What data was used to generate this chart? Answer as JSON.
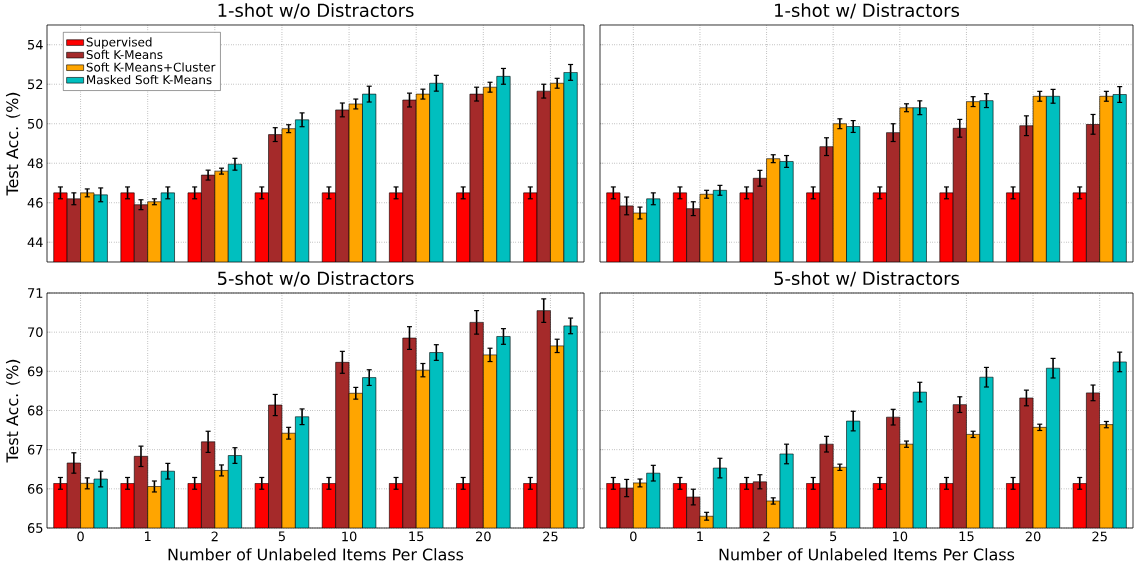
{
  "chart_data": [
    {
      "type": "bar",
      "title": "1-shot w/o Distractors",
      "ylabel": "Test Acc. (%)",
      "categories": [
        "0",
        "1",
        "2",
        "5",
        "10",
        "15",
        "20",
        "25"
      ],
      "ylim": [
        43,
        55
      ],
      "yticks": [
        44,
        46,
        48,
        50,
        52,
        54
      ],
      "grid": true,
      "legend": "top left",
      "tick_labels": "y",
      "series": [
        {
          "name": "Supervised",
          "color": "#ff0000",
          "values": [
            46.5,
            46.5,
            46.5,
            46.5,
            46.5,
            46.5,
            46.5,
            46.5
          ],
          "errors": [
            0.3,
            0.3,
            0.3,
            0.3,
            0.3,
            0.3,
            0.3,
            0.3
          ]
        },
        {
          "name": "Soft K-Means",
          "color": "#a52a2a",
          "values": [
            46.2,
            45.9,
            47.4,
            49.45,
            50.7,
            51.2,
            51.5,
            51.65
          ],
          "errors": [
            0.3,
            0.25,
            0.25,
            0.35,
            0.35,
            0.35,
            0.35,
            0.35
          ]
        },
        {
          "name": "Soft K-Means+Cluster",
          "color": "#ffa500",
          "values": [
            46.5,
            46.05,
            47.6,
            49.75,
            51.0,
            51.5,
            51.85,
            52.05
          ],
          "errors": [
            0.2,
            0.15,
            0.15,
            0.2,
            0.25,
            0.25,
            0.25,
            0.25
          ]
        },
        {
          "name": "Masked Soft K-Means",
          "color": "#00bfbf",
          "values": [
            46.4,
            46.5,
            47.95,
            50.2,
            51.5,
            52.05,
            52.4,
            52.6
          ],
          "errors": [
            0.35,
            0.3,
            0.3,
            0.35,
            0.4,
            0.4,
            0.4,
            0.4
          ]
        }
      ]
    },
    {
      "type": "bar",
      "title": "1-shot w/ Distractors",
      "categories": [
        "0",
        "1",
        "2",
        "5",
        "10",
        "15",
        "20",
        "25"
      ],
      "ylim": [
        43,
        55
      ],
      "yticks": [
        44,
        46,
        48,
        50,
        52,
        54
      ],
      "grid": true,
      "tick_labels": false,
      "series": [
        {
          "color": "#ff0000",
          "values": [
            46.5,
            46.5,
            46.5,
            46.5,
            46.5,
            46.5,
            46.5,
            46.5
          ],
          "errors": [
            0.3,
            0.3,
            0.3,
            0.3,
            0.3,
            0.3,
            0.3,
            0.3
          ]
        },
        {
          "color": "#a52a2a",
          "values": [
            45.84,
            45.7,
            47.24,
            48.84,
            49.55,
            49.77,
            49.9,
            49.97
          ],
          "errors": [
            0.45,
            0.35,
            0.4,
            0.45,
            0.45,
            0.45,
            0.5,
            0.5
          ]
        },
        {
          "color": "#ffa500",
          "values": [
            45.48,
            46.43,
            48.23,
            50.0,
            50.81,
            51.12,
            51.39,
            51.39
          ],
          "errors": [
            0.3,
            0.2,
            0.2,
            0.25,
            0.2,
            0.25,
            0.25,
            0.25
          ]
        },
        {
          "color": "#00bfbf",
          "values": [
            46.2,
            46.63,
            48.09,
            49.86,
            50.81,
            51.17,
            51.39,
            51.48
          ],
          "errors": [
            0.3,
            0.25,
            0.3,
            0.3,
            0.35,
            0.35,
            0.35,
            0.4
          ]
        }
      ]
    },
    {
      "type": "bar",
      "title": "5-shot w/o Distractors",
      "xlabel": "Number of Unlabeled Items Per Class",
      "ylabel": "Test Acc. (%)",
      "categories": [
        "0",
        "1",
        "2",
        "5",
        "10",
        "15",
        "20",
        "25"
      ],
      "ylim": [
        65,
        71
      ],
      "yticks": [
        65,
        66,
        67,
        68,
        69,
        70,
        71
      ],
      "grid": true,
      "series": [
        {
          "color": "#ff0000",
          "values": [
            66.14,
            66.14,
            66.14,
            66.14,
            66.14,
            66.14,
            66.14,
            66.14
          ],
          "errors": [
            0.15,
            0.15,
            0.15,
            0.15,
            0.15,
            0.15,
            0.15,
            0.15
          ]
        },
        {
          "color": "#a52a2a",
          "values": [
            66.66,
            66.83,
            67.2,
            68.14,
            69.23,
            69.85,
            70.25,
            70.55
          ],
          "errors": [
            0.26,
            0.26,
            0.27,
            0.27,
            0.28,
            0.29,
            0.3,
            0.3
          ]
        },
        {
          "color": "#ffa500",
          "values": [
            66.14,
            66.06,
            66.47,
            67.42,
            68.44,
            69.03,
            69.42,
            69.65
          ],
          "errors": [
            0.14,
            0.14,
            0.14,
            0.15,
            0.15,
            0.17,
            0.17,
            0.17
          ]
        },
        {
          "color": "#00bfbf",
          "values": [
            66.25,
            66.45,
            66.85,
            67.84,
            68.84,
            69.48,
            69.89,
            70.16
          ],
          "errors": [
            0.2,
            0.2,
            0.2,
            0.2,
            0.2,
            0.2,
            0.2,
            0.2
          ]
        }
      ]
    },
    {
      "type": "bar",
      "title": "5-shot w/ Distractors",
      "xlabel": "Number of Unlabeled Items Per Class",
      "categories": [
        "0",
        "1",
        "2",
        "5",
        "10",
        "15",
        "20",
        "25"
      ],
      "ylim": [
        65,
        71
      ],
      "yticks": [
        65,
        66,
        67,
        68,
        69,
        70,
        71
      ],
      "grid": true,
      "tick_labels": "x",
      "series": [
        {
          "color": "#ff0000",
          "values": [
            66.14,
            66.14,
            66.14,
            66.14,
            66.14,
            66.14,
            66.14,
            66.14
          ],
          "errors": [
            0.15,
            0.15,
            0.15,
            0.15,
            0.15,
            0.15,
            0.15,
            0.15
          ]
        },
        {
          "color": "#a52a2a",
          "values": [
            66.02,
            65.79,
            66.18,
            67.14,
            67.83,
            68.15,
            68.32,
            68.45
          ],
          "errors": [
            0.22,
            0.2,
            0.18,
            0.2,
            0.2,
            0.2,
            0.2,
            0.2
          ]
        },
        {
          "color": "#ffa500",
          "values": [
            66.15,
            65.3,
            65.69,
            66.55,
            67.14,
            67.39,
            67.57,
            67.64
          ],
          "errors": [
            0.1,
            0.1,
            0.08,
            0.08,
            0.08,
            0.08,
            0.08,
            0.08
          ]
        },
        {
          "color": "#00bfbf",
          "values": [
            66.4,
            66.53,
            66.89,
            67.73,
            68.47,
            68.85,
            69.08,
            69.24
          ],
          "errors": [
            0.2,
            0.25,
            0.25,
            0.25,
            0.25,
            0.25,
            0.25,
            0.25
          ]
        }
      ]
    }
  ]
}
